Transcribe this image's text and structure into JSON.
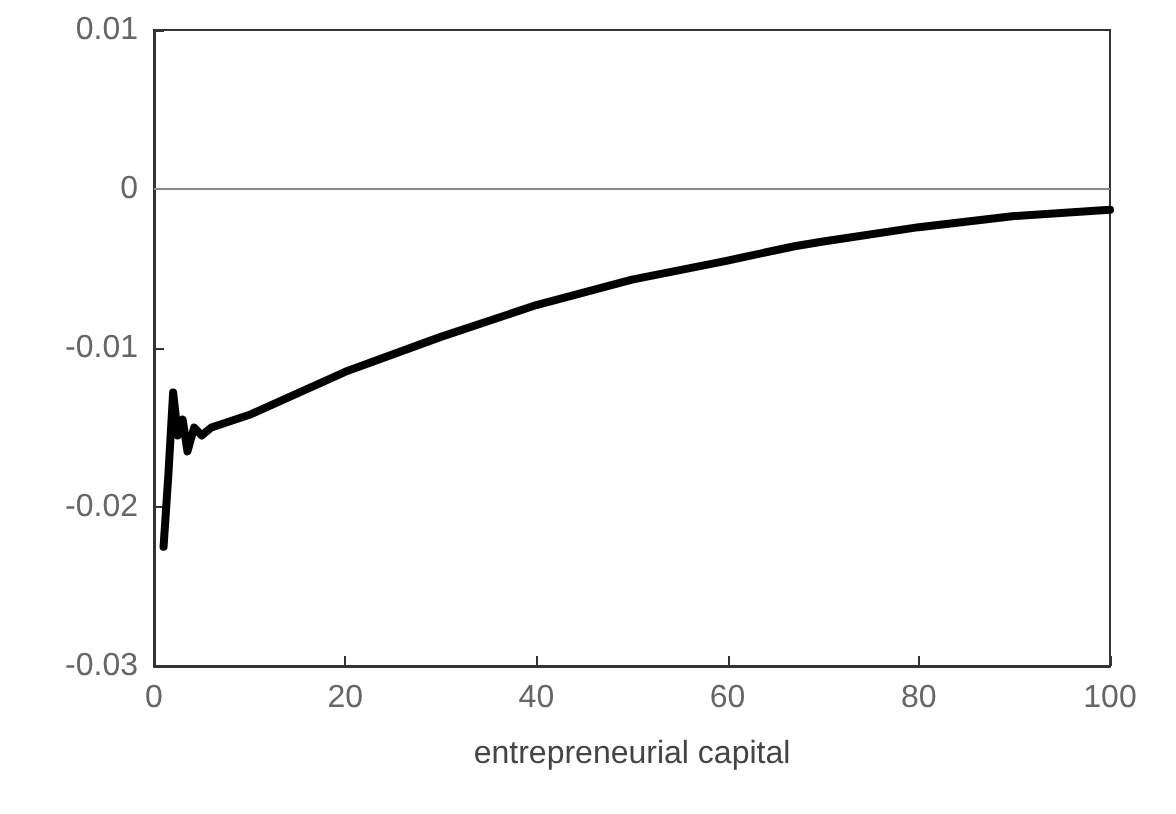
{
  "chart_data": {
    "type": "line",
    "xlabel": "entrepreneurial capital",
    "x": [
      1,
      1.5,
      2,
      2.5,
      3,
      3.5,
      4.2,
      5,
      6,
      10,
      20,
      30,
      40,
      45,
      50,
      60,
      67,
      70,
      80,
      90,
      100
    ],
    "series": [
      {
        "color": "#000000",
        "values": [
          -0.0225,
          -0.018,
          -0.0128,
          -0.0155,
          -0.0145,
          -0.0165,
          -0.015,
          -0.0155,
          -0.015,
          -0.0142,
          -0.0115,
          -0.0093,
          -0.0073,
          -0.0065,
          -0.0057,
          -0.0045,
          -0.0036,
          -0.0033,
          -0.0024,
          -0.0017,
          -0.0013
        ]
      }
    ],
    "xlim": [
      0,
      100
    ],
    "xticks": [
      0,
      20,
      40,
      60,
      80,
      100
    ],
    "ylim": [
      -0.03,
      0.01
    ],
    "yticks": [
      -0.03,
      -0.02,
      -0.01,
      0,
      0.01
    ],
    "ref_lines": [
      {
        "axis": "y",
        "value": 0,
        "color": "#888888",
        "line_style": "solid"
      }
    ],
    "marker": "none",
    "line_style": "solid"
  }
}
